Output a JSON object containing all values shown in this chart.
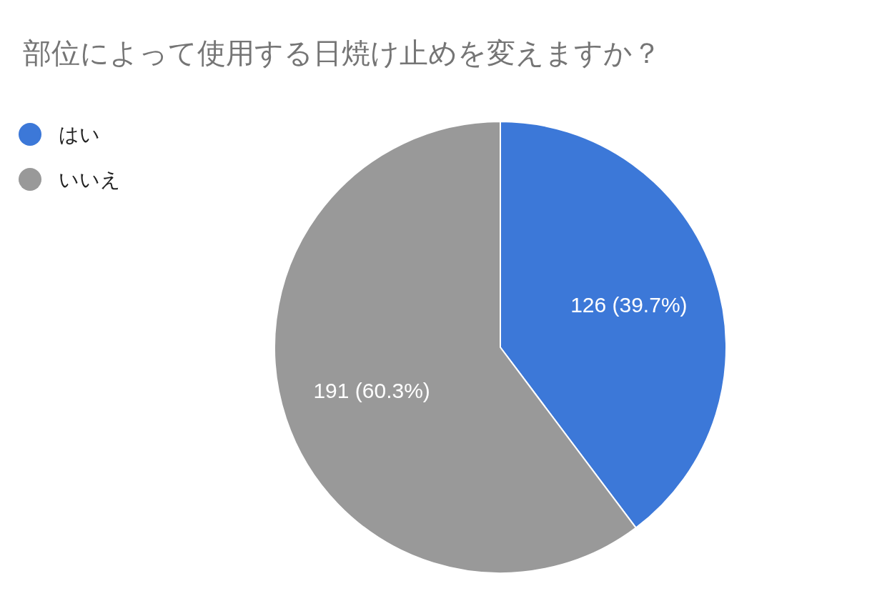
{
  "chart_data": {
    "type": "pie",
    "title": "部位によって使用する日焼け止めを変えますか？",
    "categories": [
      "はい",
      "いいえ"
    ],
    "values": [
      126,
      191
    ],
    "colors": [
      "#3c78d8",
      "#999999"
    ],
    "value_labels": [
      "126 (39.7%)",
      "191 (60.3%)"
    ],
    "legend": "top left"
  }
}
